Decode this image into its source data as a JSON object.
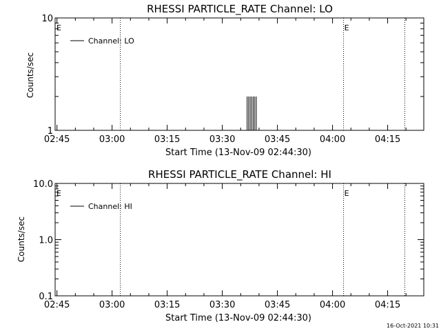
{
  "timestamp": "16-Oct-2021 10:31",
  "chart_data": [
    {
      "type": "line",
      "title": "RHESSI PARTICLE_RATE Channel: LO",
      "xlabel": "Start Time (13-Nov-09 02:44:30)",
      "ylabel": "Counts/sec",
      "y_scale": "log",
      "ylim": [
        1,
        10
      ],
      "y_ticks": [
        "1",
        "10"
      ],
      "x_range": [
        "02:44:30",
        "04:24:50"
      ],
      "x_ticks": [
        "02:45",
        "03:00",
        "03:15",
        "03:30",
        "03:45",
        "04:00",
        "04:15"
      ],
      "legend": {
        "position": "top-left",
        "entries": [
          "Channel: LO"
        ]
      },
      "series": [
        {
          "name": "Channel: LO",
          "x": [
            "03:36:45",
            "03:37:10",
            "03:37:35",
            "03:38:00",
            "03:38:25",
            "03:38:50",
            "03:39:15"
          ],
          "values": [
            2,
            2,
            2,
            2,
            2,
            2,
            2
          ]
        }
      ],
      "vlines": [
        {
          "x": "03:02:15",
          "label": ""
        },
        {
          "x": "04:03:00",
          "label": "E"
        },
        {
          "x": "04:19:40",
          "label": ""
        }
      ],
      "edge_marker": "E"
    },
    {
      "type": "line",
      "title": "RHESSI PARTICLE_RATE Channel: HI",
      "xlabel": "Start Time (13-Nov-09 02:44:30)",
      "ylabel": "Counts/sec",
      "y_scale": "log",
      "ylim": [
        0.1,
        10
      ],
      "y_ticks": [
        "0.1",
        "1.0",
        "10.0"
      ],
      "x_range": [
        "02:44:30",
        "04:24:50"
      ],
      "x_ticks": [
        "02:45",
        "03:00",
        "03:15",
        "03:30",
        "03:45",
        "04:00",
        "04:15"
      ],
      "legend": {
        "position": "top-left",
        "entries": [
          "Channel: HI"
        ]
      },
      "series": [
        {
          "name": "Channel: HI",
          "x": [],
          "values": []
        }
      ],
      "vlines": [
        {
          "x": "03:02:15",
          "label": ""
        },
        {
          "x": "04:03:00",
          "label": "E"
        },
        {
          "x": "04:19:40",
          "label": ""
        }
      ],
      "edge_marker": "E"
    }
  ]
}
